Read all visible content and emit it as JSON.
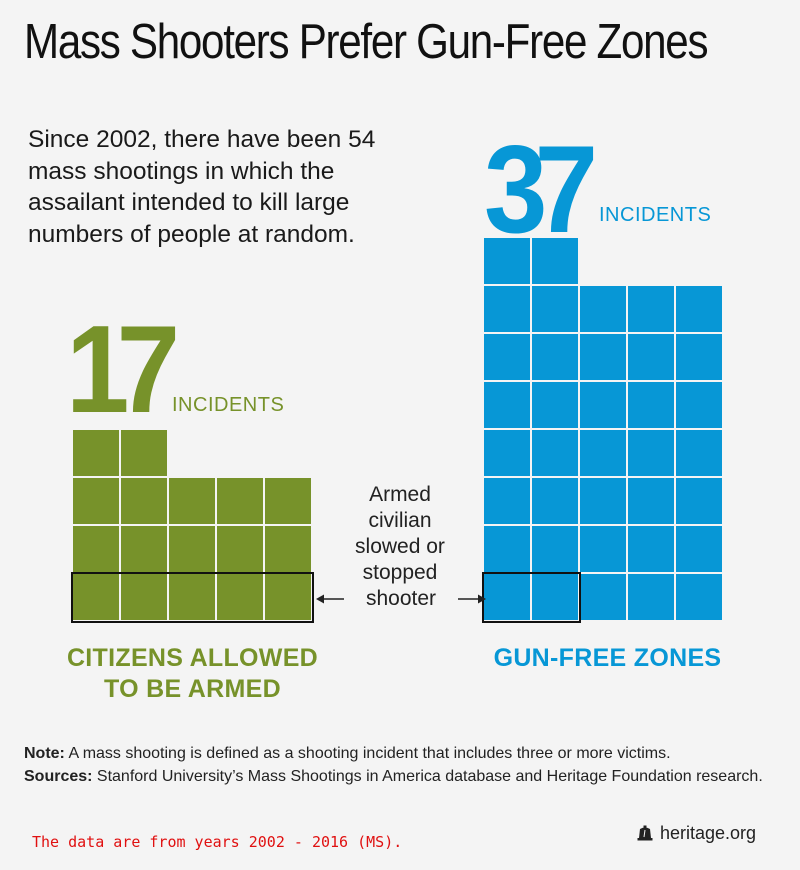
{
  "title": "Mass Shooters Prefer Gun-Free Zones",
  "intro": "Since 2002, there have been 54 mass shootings in which the assailant intended to kill large numbers of people at random.",
  "colors": {
    "green": "#77922a",
    "blue": "#0797d6",
    "outline": "#111111"
  },
  "chart_data": {
    "type": "bar",
    "categories": [
      "CITIZENS ALLOWED TO BE ARMED",
      "GUN-FREE ZONES"
    ],
    "values": [
      17,
      37
    ],
    "value_suffix": "INCIDENTS",
    "highlighted_subset": {
      "values": [
        5,
        2
      ],
      "description": "Armed civilian slowed or stopped shooter"
    }
  },
  "green_panel": {
    "number": "17",
    "unit": "INCIDENTS",
    "label_line1": "CITIZENS ALLOWED",
    "label_line2": "TO BE ARMED"
  },
  "blue_panel": {
    "number": "37",
    "unit": "INCIDENTS",
    "label": "GUN-FREE ZONES"
  },
  "annotation": {
    "line1": "Armed",
    "line2": "civilian",
    "line3": "slowed or",
    "line4": "stopped",
    "line5": "shooter"
  },
  "notes": {
    "note_label": "Note:",
    "note_text": " A mass shooting is defined as a shooting incident that includes three or more victims.",
    "sources_label": "Sources:",
    "sources_text": " Stanford University’s Mass Shootings in America database and Heritage Foundation research."
  },
  "footer_note": "The data are from years 2002 - 2016 (MS).",
  "brand": "heritage.org"
}
